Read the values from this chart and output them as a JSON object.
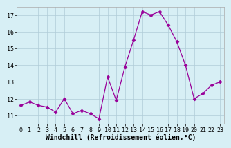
{
  "x": [
    0,
    1,
    2,
    3,
    4,
    5,
    6,
    7,
    8,
    9,
    10,
    11,
    12,
    13,
    14,
    15,
    16,
    17,
    18,
    19,
    20,
    21,
    22,
    23
  ],
  "y": [
    11.6,
    11.8,
    11.6,
    11.5,
    11.2,
    12.0,
    11.1,
    11.3,
    11.1,
    10.8,
    13.3,
    11.9,
    13.9,
    15.5,
    17.2,
    17.0,
    17.2,
    16.4,
    15.4,
    14.0,
    12.0,
    12.3,
    12.8,
    13.0
  ],
  "line_color": "#990099",
  "marker": "D",
  "marker_size": 2.5,
  "bg_color": "#d7eff5",
  "grid_color": "#b0ccd8",
  "xlabel": "Windchill (Refroidissement éolien,°C)",
  "xlabel_fontsize": 7,
  "tick_fontsize": 6,
  "ylim": [
    10.5,
    17.5
  ],
  "yticks": [
    11,
    12,
    13,
    14,
    15,
    16,
    17
  ],
  "xlim": [
    -0.5,
    23.5
  ],
  "xticks": [
    0,
    1,
    2,
    3,
    4,
    5,
    6,
    7,
    8,
    9,
    10,
    11,
    12,
    13,
    14,
    15,
    16,
    17,
    18,
    19,
    20,
    21,
    22,
    23
  ]
}
